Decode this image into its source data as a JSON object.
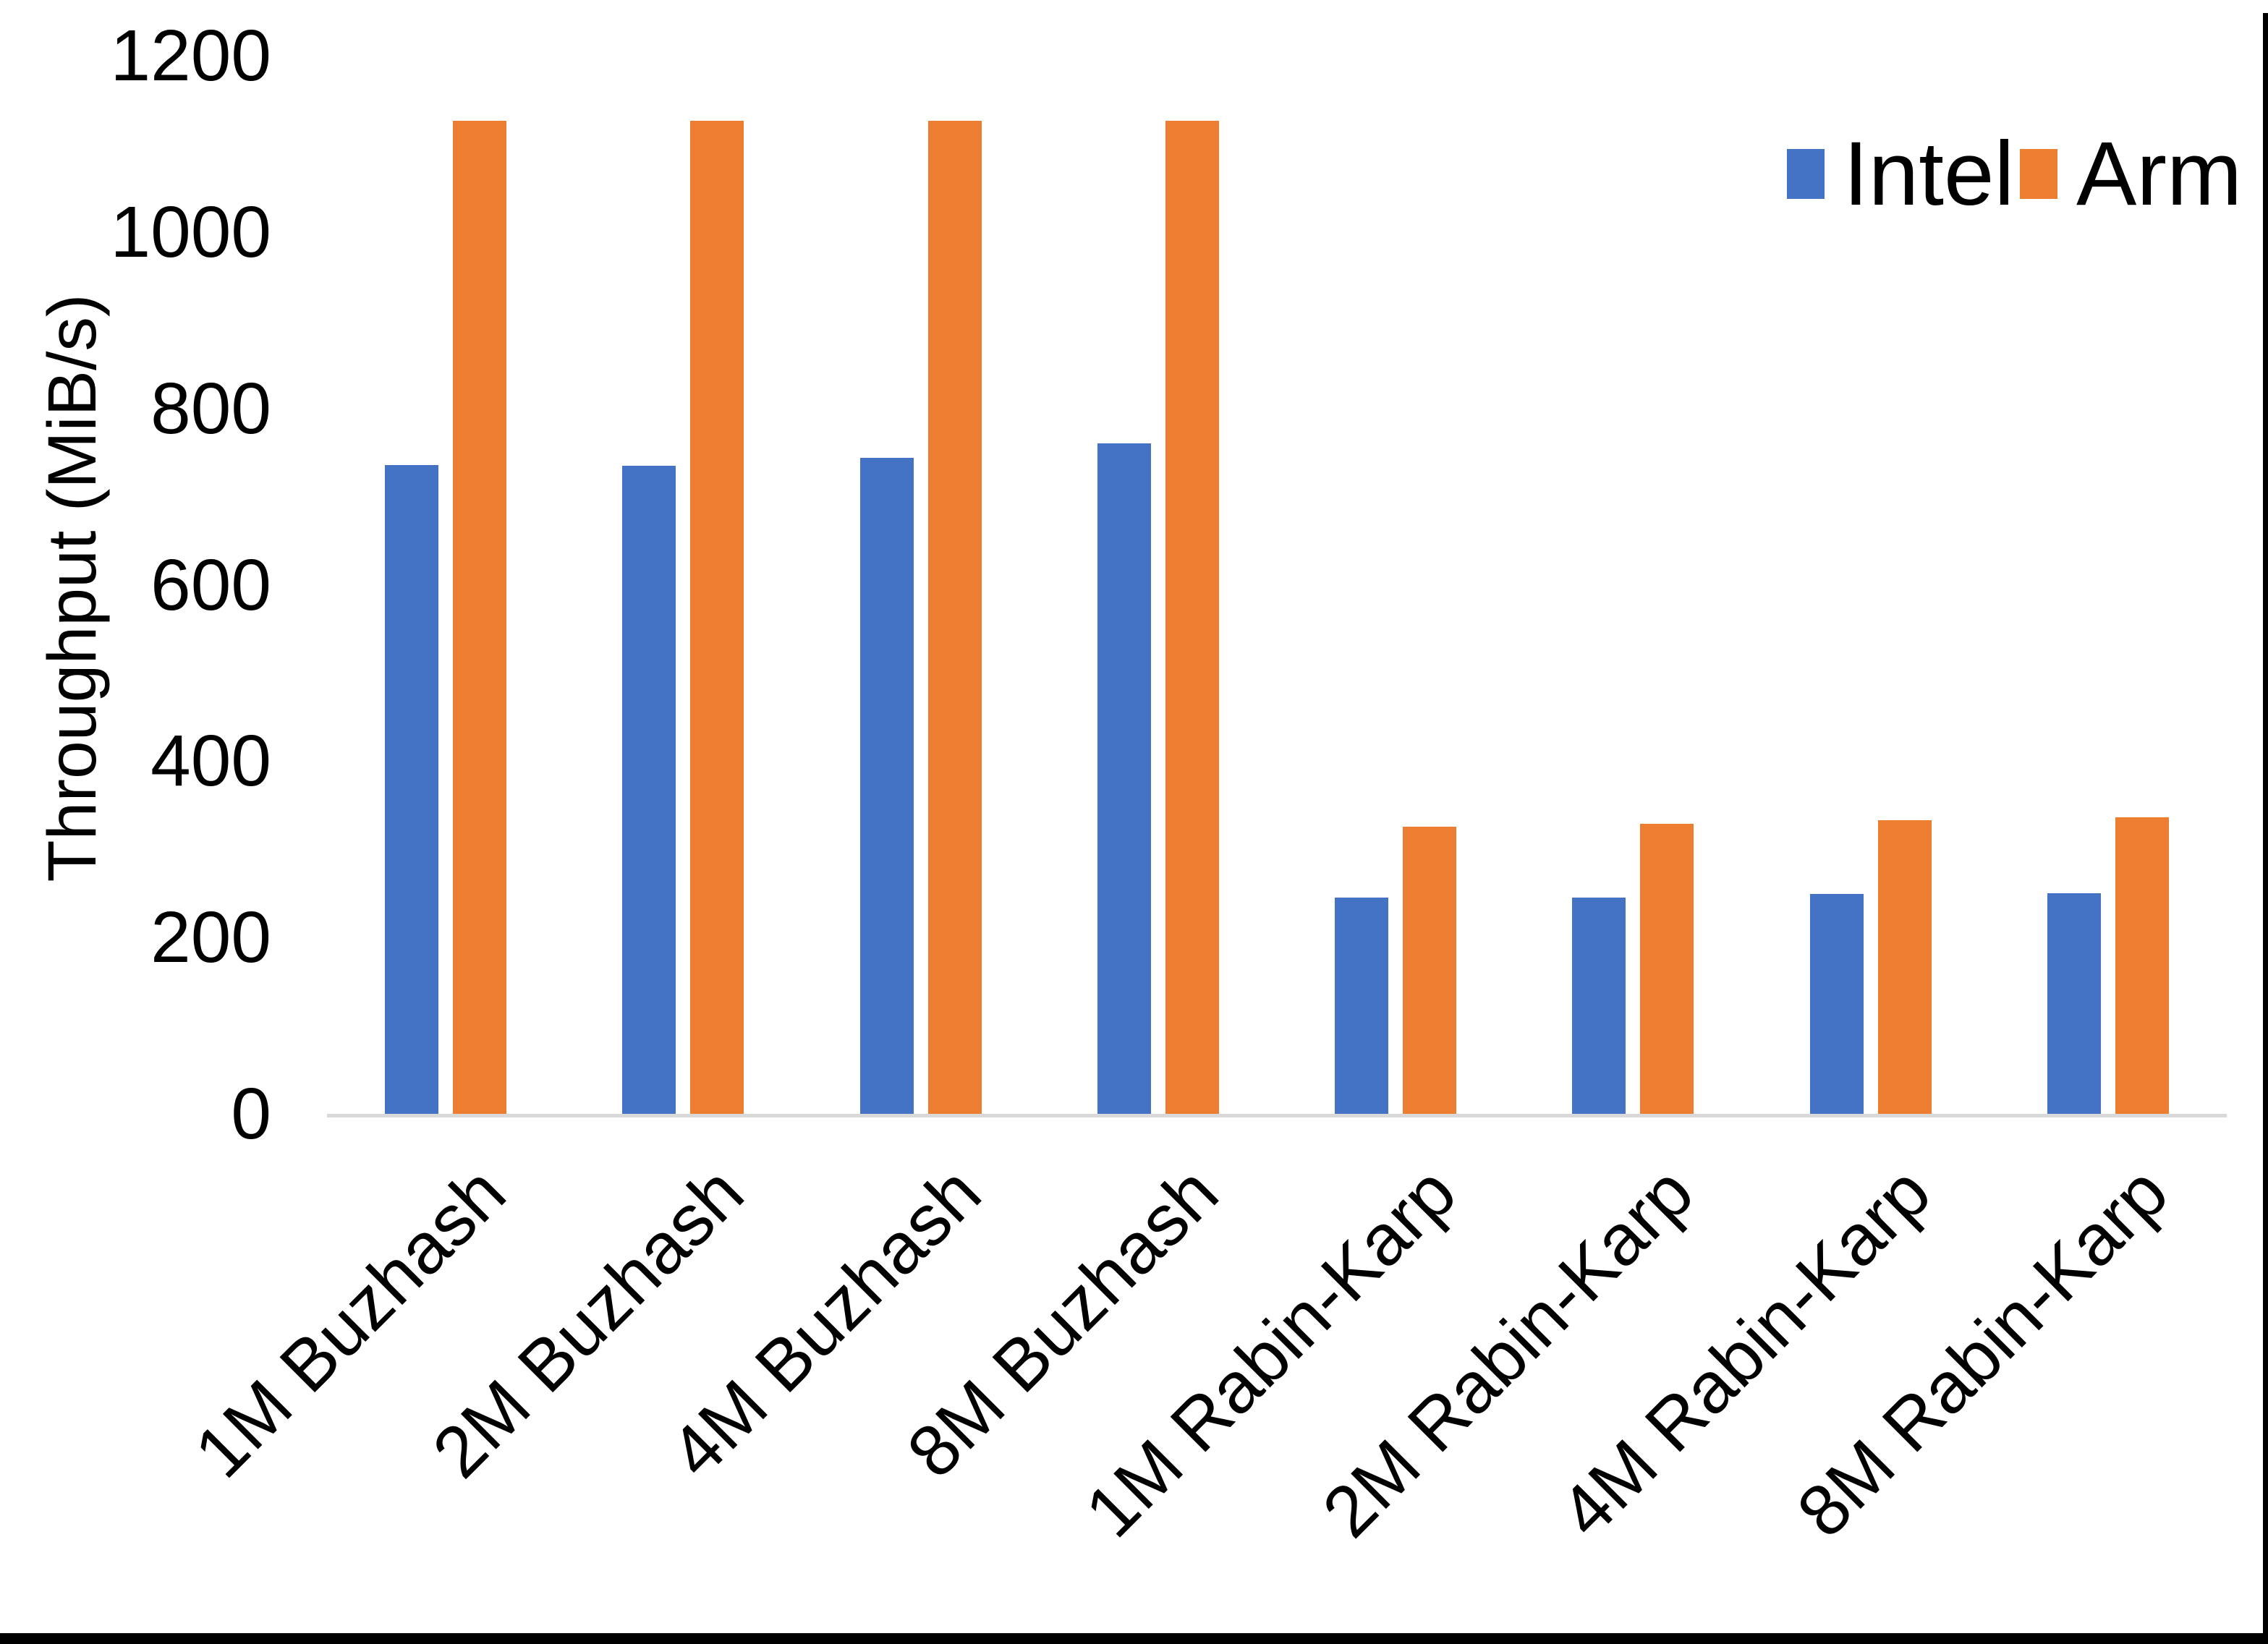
{
  "chart_data": {
    "type": "bar",
    "title": "",
    "xlabel": "",
    "ylabel": "Throughput (MiB/s)",
    "ylim": [
      0,
      1200
    ],
    "yticks": [
      0,
      200,
      400,
      600,
      800,
      1000,
      1200
    ],
    "grid": false,
    "legend_position": "top-right",
    "axis_line_color": "#D9D9D9",
    "text_color": "#000000",
    "categories": [
      "1M Buzhash",
      "2M Buzhash",
      "4M Buzhash",
      "8M Buzhash",
      "1M Rabin-Karp",
      "2M Rabin-Karp",
      "4M Rabin-Karp",
      "8M Rabin-Karp"
    ],
    "series": [
      {
        "name": "Intel",
        "color": "#4472C4",
        "values": [
          736,
          735,
          744,
          760,
          245,
          245,
          249,
          250
        ]
      },
      {
        "name": "Arm",
        "color": "#ED7D31",
        "values": [
          1126,
          1126,
          1126,
          1126,
          326,
          329,
          333,
          336
        ]
      }
    ]
  },
  "frame": {
    "right_border_color": "#000000",
    "bottom_border_color": "#000000"
  }
}
